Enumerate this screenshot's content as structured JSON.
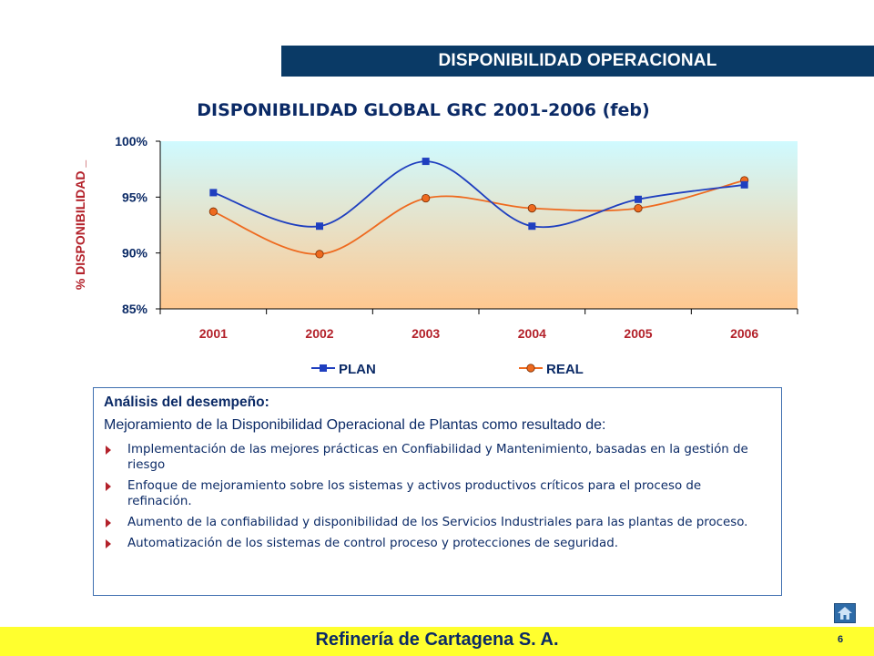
{
  "header": {
    "banner": "DISPONIBILIDAD OPERACIONAL"
  },
  "chart_data": {
    "type": "line",
    "title": "DISPONIBILIDAD GLOBAL GRC 2001-2006 (feb)",
    "ylabel": "% DISPONIBILIDAD _",
    "categories": [
      "2001",
      "2002",
      "2003",
      "2004",
      "2005",
      "2006"
    ],
    "yticks": [
      "85%",
      "90%",
      "95%",
      "100%"
    ],
    "ylim": [
      85,
      100
    ],
    "series": [
      {
        "name": "PLAN",
        "values": [
          95.4,
          92.4,
          98.2,
          92.4,
          94.8,
          96.1
        ],
        "color": "#1f3fbf",
        "marker": "square"
      },
      {
        "name": "REAL",
        "values": [
          93.7,
          89.9,
          94.9,
          94.0,
          94.0,
          96.5
        ],
        "color": "#ee6a1f",
        "marker": "circle"
      }
    ],
    "legend": "bottom",
    "background_gradient": [
      "#cffaff",
      "#ffc890"
    ]
  },
  "analysis": {
    "heading": "Análisis del desempeño:",
    "lead": "Mejoramiento de la Disponibilidad  Operacional de Plantas como resultado de:",
    "items": [
      "Implementación de las mejores prácticas en Confiabilidad y Mantenimiento, basadas en la gestión de riesgo",
      "Enfoque de mejoramiento sobre los sistemas y activos productivos críticos para el proceso de refinación.",
      "Aumento de la confiabilidad y disponibilidad de los Servicios Industriales para las plantas de    proceso.",
      "Automatización de los sistemas de control proceso y protecciones de seguridad."
    ]
  },
  "footer": {
    "company": "Refinería de Cartagena S. A.",
    "page": "6"
  },
  "icons": {
    "home": "home-icon",
    "bullet": "arrow-right-icon"
  }
}
